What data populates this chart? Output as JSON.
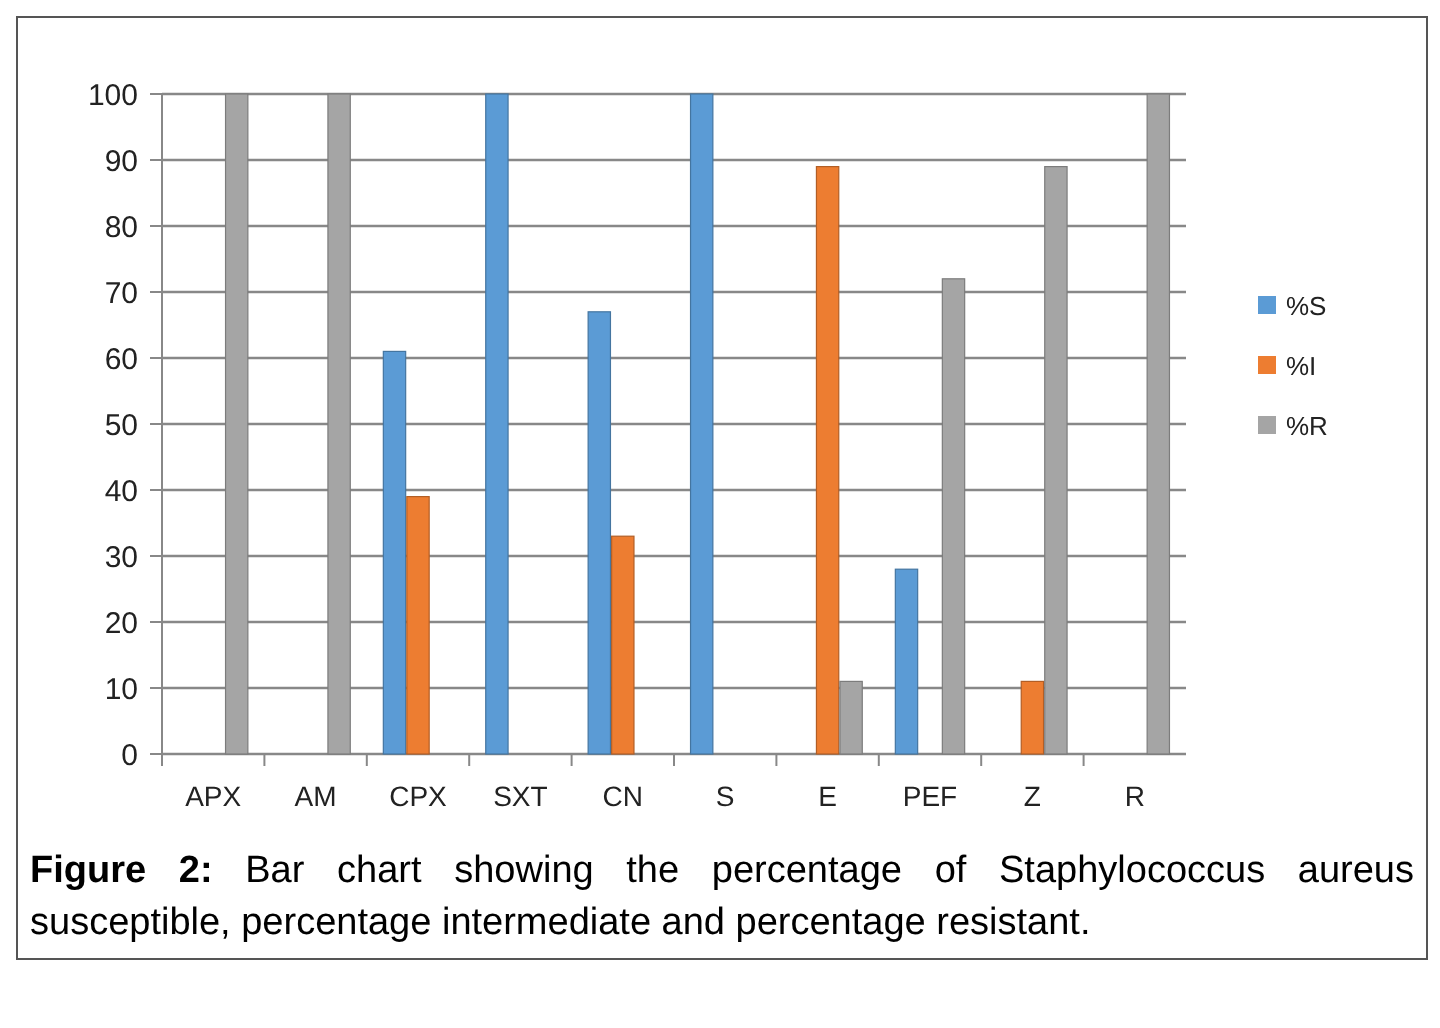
{
  "chart_data": {
    "type": "bar",
    "categories": [
      "APX",
      "AM",
      "CPX",
      "SXT",
      "CN",
      "S",
      "E",
      "PEF",
      "Z",
      "R"
    ],
    "series": [
      {
        "name": "%S",
        "color": "#5b9bd5",
        "values": [
          0,
          0,
          61,
          100,
          67,
          100,
          0,
          28,
          0,
          0
        ]
      },
      {
        "name": "%I",
        "color": "#ed7d31",
        "values": [
          0,
          0,
          39,
          0,
          33,
          0,
          89,
          0,
          11,
          0
        ]
      },
      {
        "name": "%R",
        "color": "#a5a5a5",
        "values": [
          100,
          100,
          0,
          0,
          0,
          0,
          11,
          72,
          89,
          100
        ]
      }
    ],
    "ylim": [
      0,
      100
    ],
    "yticks": [
      0,
      10,
      20,
      30,
      40,
      50,
      60,
      70,
      80,
      90,
      100
    ],
    "grid": true,
    "legend": "right",
    "annotations": [
      "Figure 2: Bar chart showing the percentage of Staphylococcus aureus susceptible, percentage intermediate and percentage resistant."
    ]
  }
}
